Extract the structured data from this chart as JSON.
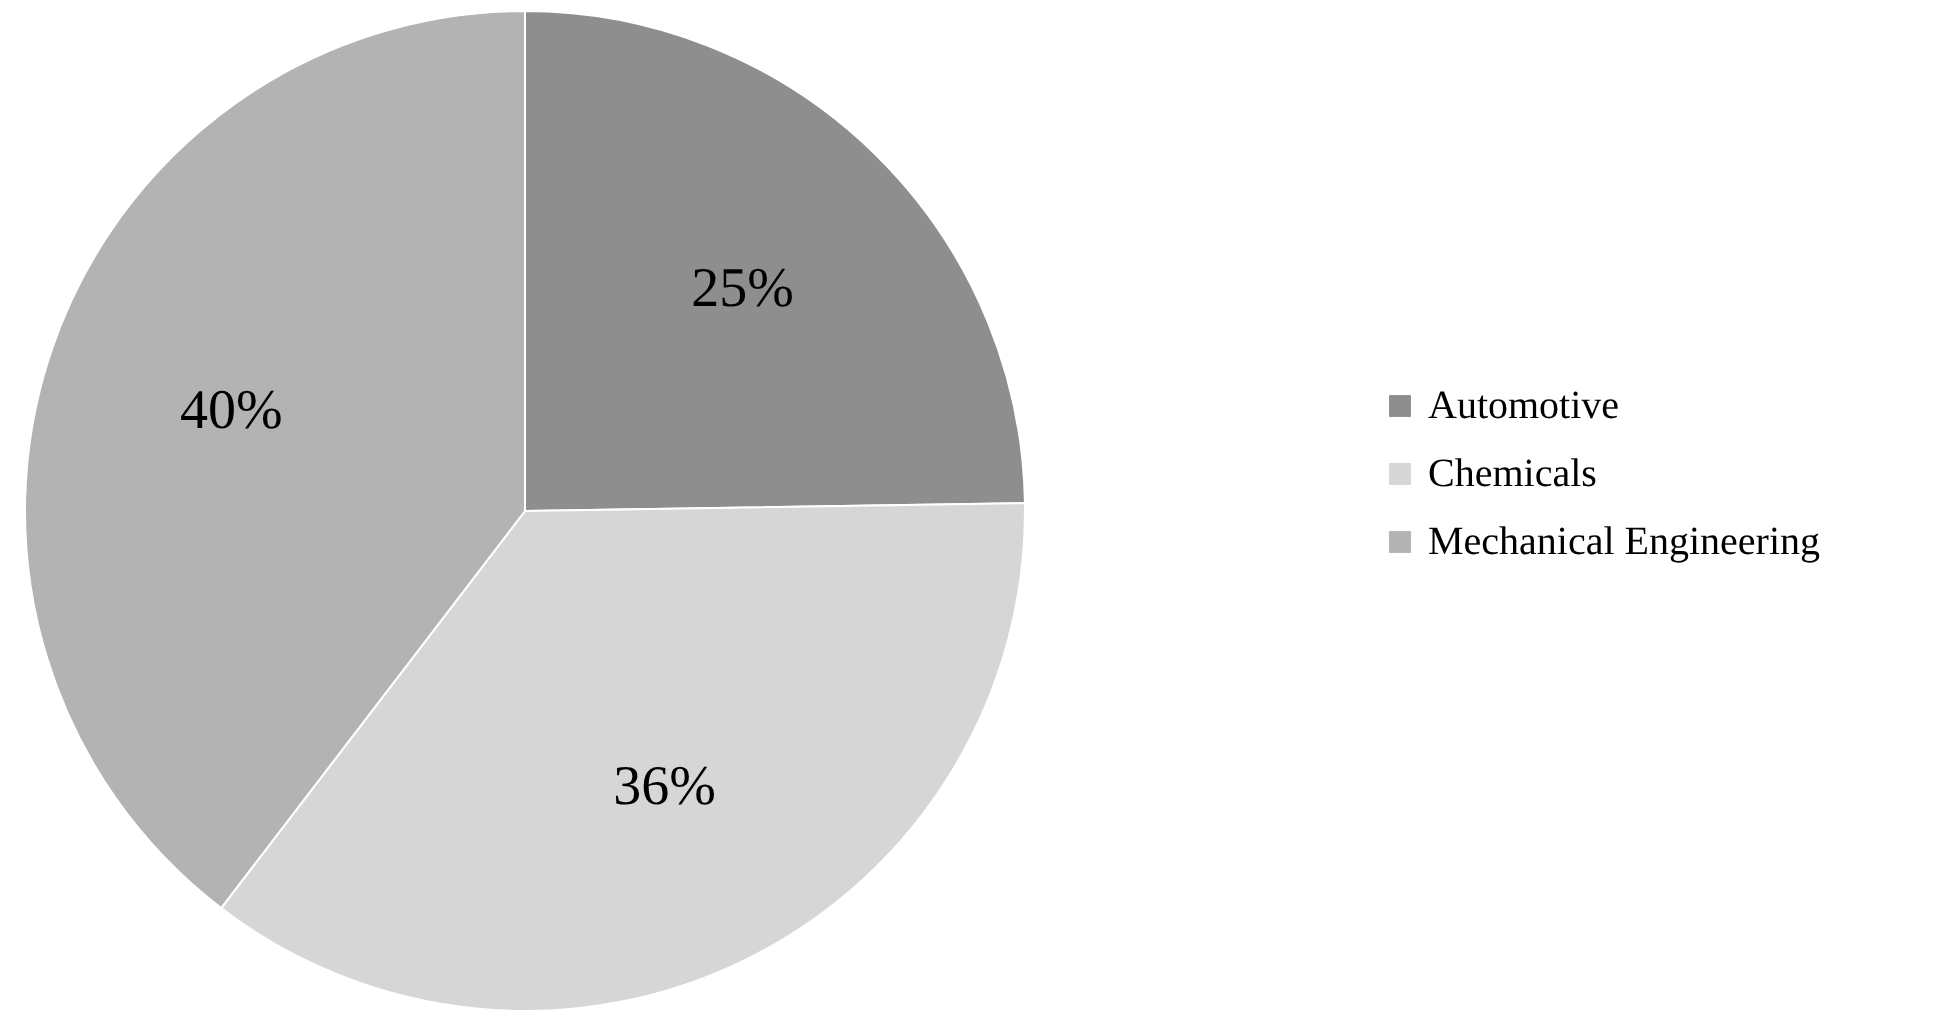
{
  "chart_data": {
    "type": "pie",
    "categories": [
      "Automotive",
      "Chemicals",
      "Mechanical Engineering"
    ],
    "values": [
      25,
      36,
      40
    ],
    "colors": [
      "#8e8e8e",
      "#d6d6d6",
      "#b3b3b3"
    ],
    "value_labels": [
      "25%",
      "36%",
      "40%"
    ],
    "legend": "right"
  }
}
